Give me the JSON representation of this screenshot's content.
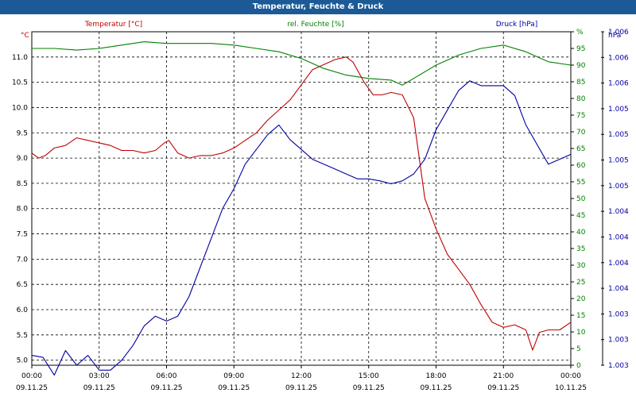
{
  "window": {
    "title": "Temperatur, Feuchte & Druck"
  },
  "colors": {
    "temperature": "#c00000",
    "humidity": "#008000",
    "pressure": "#0000a0",
    "grid": "#000000"
  },
  "chart_data": {
    "type": "line",
    "title": "Temperatur, Feuchte & Druck",
    "x": {
      "range_hours": [
        0,
        24
      ],
      "ticks": [
        {
          "time": "00:00",
          "date": "09.11.25"
        },
        {
          "time": "03:00",
          "date": "09.11.25"
        },
        {
          "time": "06:00",
          "date": "09.11.25"
        },
        {
          "time": "09:00",
          "date": "09.11.25"
        },
        {
          "time": "12:00",
          "date": "09.11.25"
        },
        {
          "time": "15:00",
          "date": "09.11.25"
        },
        {
          "time": "18:00",
          "date": "09.11.25"
        },
        {
          "time": "21:00",
          "date": "09.11.25"
        },
        {
          "time": "00:00",
          "date": "10.11.25"
        }
      ]
    },
    "axes": {
      "left": {
        "unit": "°C",
        "label": "Temperatur [°C]",
        "range": [
          4.9,
          11.5
        ],
        "ticks": [
          "5.0",
          "5.5",
          "6.0",
          "6.5",
          "7.0",
          "7.5",
          "8.0",
          "8.5",
          "9.0",
          "9.5",
          "10.0",
          "10.5",
          "11.0"
        ]
      },
      "middle": {
        "unit": "%",
        "label": "rel. Feuchte [%]",
        "range": [
          0,
          100
        ],
        "ticks": [
          "0",
          "5",
          "10",
          "15",
          "20",
          "25",
          "30",
          "35",
          "40",
          "45",
          "50",
          "55",
          "60",
          "65",
          "70",
          "75",
          "80",
          "85",
          "90",
          "95",
          "%"
        ]
      },
      "right": {
        "unit": "hPa",
        "label": "Druck [hPa]",
        "range": [
          1.003,
          1.0064
        ],
        "ticks": [
          "1.003",
          "1.003",
          "1.003",
          "1.004",
          "1.004",
          "1.004",
          "1.004",
          "1.005",
          "1.005",
          "1.005",
          "1.005",
          "1.006",
          "1.006",
          "1.006"
        ]
      }
    },
    "series": [
      {
        "name": "Temperatur [°C]",
        "axis": "left",
        "points": [
          [
            0,
            9.1
          ],
          [
            0.3,
            9.0
          ],
          [
            0.6,
            9.05
          ],
          [
            1,
            9.2
          ],
          [
            1.5,
            9.25
          ],
          [
            2,
            9.4
          ],
          [
            2.5,
            9.35
          ],
          [
            3,
            9.3
          ],
          [
            3.5,
            9.25
          ],
          [
            4,
            9.15
          ],
          [
            4.5,
            9.15
          ],
          [
            5,
            9.1
          ],
          [
            5.5,
            9.15
          ],
          [
            5.9,
            9.3
          ],
          [
            6.1,
            9.35
          ],
          [
            6.5,
            9.1
          ],
          [
            7,
            9.0
          ],
          [
            7.5,
            9.05
          ],
          [
            8,
            9.05
          ],
          [
            8.5,
            9.1
          ],
          [
            9,
            9.2
          ],
          [
            9.5,
            9.35
          ],
          [
            10,
            9.5
          ],
          [
            10.5,
            9.75
          ],
          [
            11,
            9.95
          ],
          [
            11.5,
            10.15
          ],
          [
            12,
            10.45
          ],
          [
            12.5,
            10.75
          ],
          [
            13,
            10.85
          ],
          [
            13.5,
            10.95
          ],
          [
            14,
            11.0
          ],
          [
            14.3,
            10.9
          ],
          [
            14.8,
            10.5
          ],
          [
            15.2,
            10.25
          ],
          [
            15.6,
            10.25
          ],
          [
            16,
            10.3
          ],
          [
            16.5,
            10.25
          ],
          [
            17,
            9.8
          ],
          [
            17.5,
            8.2
          ],
          [
            18,
            7.6
          ],
          [
            18.5,
            7.1
          ],
          [
            19,
            6.8
          ],
          [
            19.5,
            6.5
          ],
          [
            20,
            6.1
          ],
          [
            20.5,
            5.75
          ],
          [
            21,
            5.65
          ],
          [
            21.5,
            5.7
          ],
          [
            22,
            5.6
          ],
          [
            22.3,
            5.2
          ],
          [
            22.6,
            5.55
          ],
          [
            23,
            5.6
          ],
          [
            23.5,
            5.6
          ],
          [
            24,
            5.75
          ]
        ]
      },
      {
        "name": "rel. Feuchte [%]",
        "axis": "middle",
        "points": [
          [
            0,
            95
          ],
          [
            1,
            95
          ],
          [
            2,
            94.5
          ],
          [
            3,
            95
          ],
          [
            4,
            96
          ],
          [
            5,
            97
          ],
          [
            6,
            96.5
          ],
          [
            7,
            96.5
          ],
          [
            8,
            96.5
          ],
          [
            9,
            96
          ],
          [
            10,
            95
          ],
          [
            11,
            94
          ],
          [
            12,
            92
          ],
          [
            13,
            89
          ],
          [
            14,
            87
          ],
          [
            15,
            86
          ],
          [
            16,
            85.5
          ],
          [
            16.5,
            84
          ],
          [
            17,
            86
          ],
          [
            18,
            90
          ],
          [
            19,
            93
          ],
          [
            20,
            95
          ],
          [
            21,
            96
          ],
          [
            22,
            94
          ],
          [
            23,
            91
          ],
          [
            24,
            90
          ]
        ]
      },
      {
        "name": "Druck [hPa]",
        "axis": "right",
        "points": [
          [
            0,
            1.0031
          ],
          [
            0.5,
            1.00308
          ],
          [
            1,
            1.0029
          ],
          [
            1.5,
            1.00315
          ],
          [
            2,
            1.003
          ],
          [
            2.5,
            1.0031
          ],
          [
            3,
            1.00295
          ],
          [
            3.5,
            1.00295
          ],
          [
            4,
            1.00305
          ],
          [
            4.5,
            1.0032
          ],
          [
            5,
            1.0034
          ],
          [
            5.5,
            1.0035
          ],
          [
            6,
            1.00345
          ],
          [
            6.5,
            1.0035
          ],
          [
            7,
            1.0037
          ],
          [
            7.5,
            1.004
          ],
          [
            8,
            1.0043
          ],
          [
            8.5,
            1.0046
          ],
          [
            9,
            1.0048
          ],
          [
            9.5,
            1.00505
          ],
          [
            10,
            1.0052
          ],
          [
            10.5,
            1.00535
          ],
          [
            11,
            1.00545
          ],
          [
            11.5,
            1.0053
          ],
          [
            12,
            1.0052
          ],
          [
            12.5,
            1.0051
          ],
          [
            13,
            1.00505
          ],
          [
            13.5,
            1.005
          ],
          [
            14,
            1.00495
          ],
          [
            14.5,
            1.0049
          ],
          [
            15,
            1.0049
          ],
          [
            15.5,
            1.00488
          ],
          [
            16,
            1.00485
          ],
          [
            16.5,
            1.00488
          ],
          [
            17,
            1.00495
          ],
          [
            17.5,
            1.0051
          ],
          [
            18,
            1.0054
          ],
          [
            18.5,
            1.0056
          ],
          [
            19,
            1.0058
          ],
          [
            19.5,
            1.0059
          ],
          [
            20,
            1.00585
          ],
          [
            20.5,
            1.00585
          ],
          [
            21,
            1.00585
          ],
          [
            21.5,
            1.00575
          ],
          [
            22,
            1.00545
          ],
          [
            22.5,
            1.00525
          ],
          [
            23,
            1.00505
          ],
          [
            23.5,
            1.0051
          ],
          [
            24,
            1.00515
          ]
        ]
      }
    ]
  }
}
